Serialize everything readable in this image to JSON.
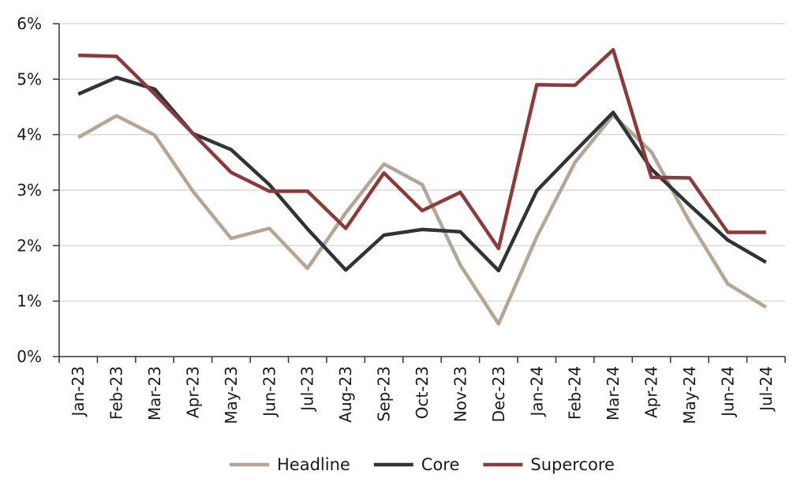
{
  "chart_data": {
    "type": "line",
    "title": "",
    "xlabel": "",
    "ylabel": "",
    "ylim": [
      0,
      6
    ],
    "y_ticks": [
      "0%",
      "1%",
      "2%",
      "3%",
      "4%",
      "5%",
      "6%"
    ],
    "grid": "horizontal",
    "legend_position": "bottom",
    "categories": [
      "Jan-23",
      "Feb-23",
      "Mar-23",
      "Apr-23",
      "May-23",
      "Jun-23",
      "Jul-23",
      "Aug-23",
      "Sep-23",
      "Oct-23",
      "Nov-23",
      "Dec-23",
      "Jan-24",
      "Feb-24",
      "Mar-24",
      "Apr-24",
      "May-24",
      "Jun-24",
      "Jul-24"
    ],
    "series": [
      {
        "name": "Headline",
        "color": "#b5a694",
        "values": [
          3.95,
          4.34,
          3.99,
          2.98,
          2.13,
          2.31,
          1.59,
          2.59,
          3.47,
          3.1,
          1.65,
          0.59,
          2.16,
          3.5,
          4.35,
          3.69,
          2.43,
          1.31,
          0.89
        ]
      },
      {
        "name": "Core",
        "color": "#2e3438",
        "values": [
          4.73,
          5.03,
          4.82,
          4.02,
          3.73,
          3.1,
          2.3,
          1.56,
          2.19,
          2.29,
          2.25,
          1.55,
          2.99,
          3.7,
          4.4,
          3.38,
          2.73,
          2.1,
          1.7
        ]
      },
      {
        "name": "Supercore",
        "color": "#8c3a3a",
        "values": [
          5.43,
          5.41,
          4.73,
          4.02,
          3.32,
          2.98,
          2.98,
          2.31,
          3.31,
          2.63,
          2.96,
          1.95,
          4.9,
          4.89,
          5.53,
          3.23,
          3.22,
          2.24,
          2.24
        ]
      }
    ]
  }
}
